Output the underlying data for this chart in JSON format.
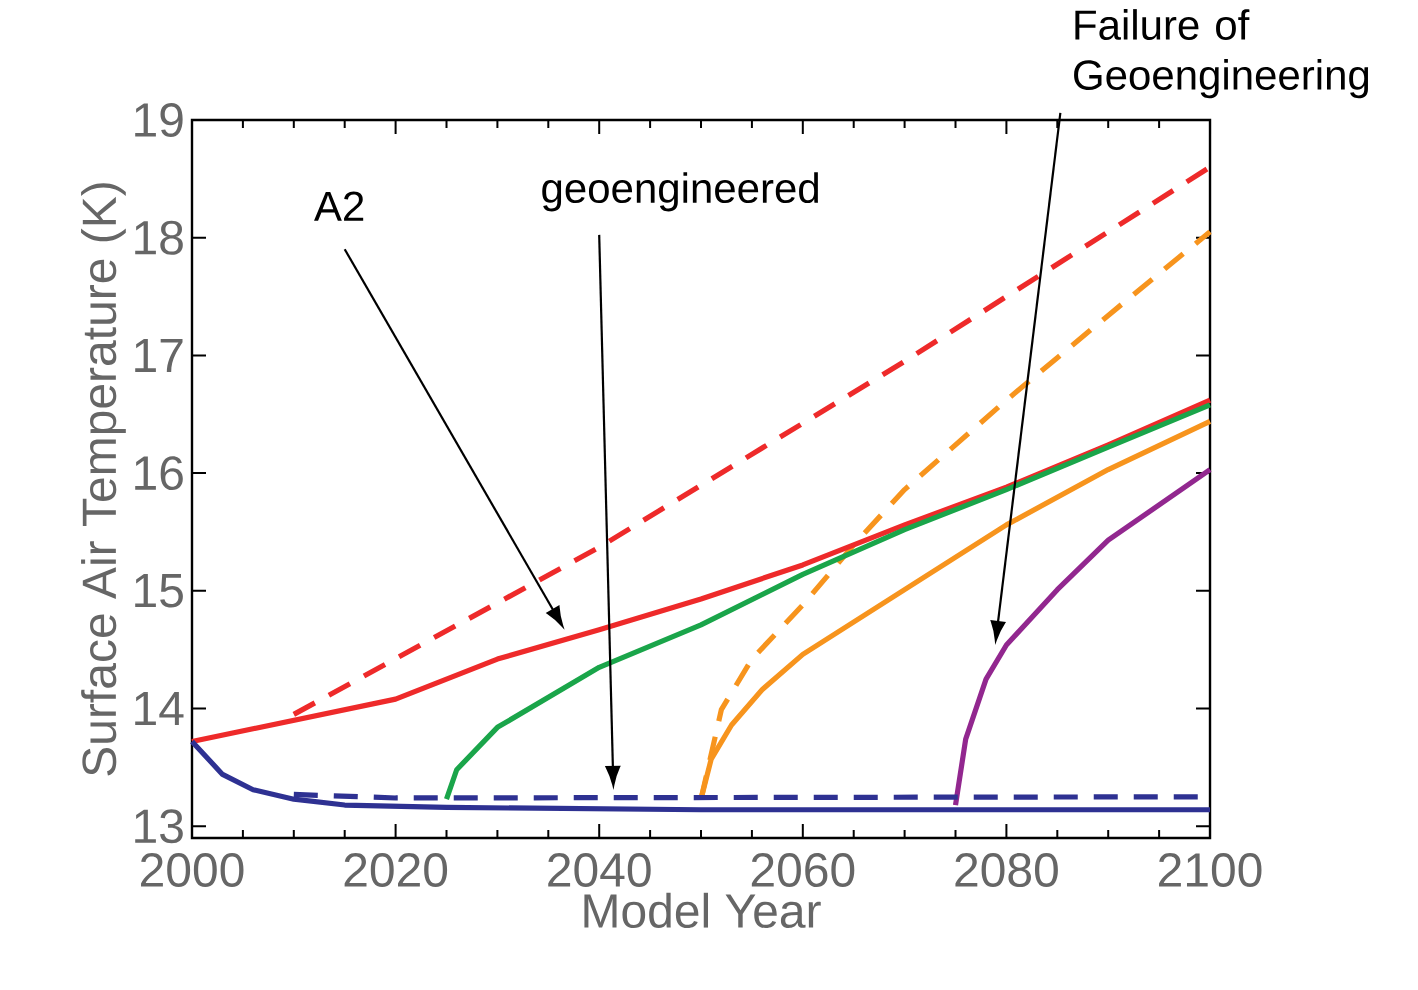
{
  "chart_data": {
    "type": "line",
    "xlabel": "Model Year",
    "ylabel": "Surface Air Temperature (K)",
    "xlim": [
      2000,
      2100
    ],
    "ylim": [
      12.9,
      19
    ],
    "xticks": [
      2000,
      2020,
      2040,
      2060,
      2080,
      2100
    ],
    "yticks": [
      13,
      14,
      15,
      16,
      17,
      18,
      19
    ],
    "series": [
      {
        "color": "#ee2a2a",
        "line_style": "dashed",
        "x": [
          2010,
          2040,
          2070,
          2100
        ],
        "values": [
          13.95,
          15.37,
          16.95,
          18.6
        ]
      },
      {
        "color": "#f7941d",
        "line_style": "dashed",
        "x": [
          2050,
          2052,
          2055,
          2060,
          2065,
          2070,
          2080,
          2090,
          2100
        ],
        "values": [
          13.23,
          13.99,
          14.42,
          14.88,
          15.39,
          15.86,
          16.62,
          17.34,
          18.05
        ]
      },
      {
        "color": "#ee2a2a",
        "line_style": "solid",
        "x": [
          2000,
          2020,
          2030,
          2040,
          2050,
          2060,
          2070,
          2080,
          2090,
          2100
        ],
        "values": [
          13.72,
          14.08,
          14.42,
          14.67,
          14.93,
          15.22,
          15.56,
          15.88,
          16.24,
          16.62
        ]
      },
      {
        "color": "#1aa54a",
        "line_style": "solid",
        "x": [
          2025,
          2026,
          2030,
          2040,
          2050,
          2060,
          2070,
          2080,
          2090,
          2100
        ],
        "values": [
          13.23,
          13.48,
          13.84,
          14.35,
          14.71,
          15.14,
          15.52,
          15.86,
          16.22,
          16.58
        ]
      },
      {
        "color": "#f7941d",
        "line_style": "solid",
        "x": [
          2050,
          2051,
          2053,
          2056,
          2060,
          2070,
          2080,
          2090,
          2100
        ],
        "values": [
          13.23,
          13.57,
          13.86,
          14.16,
          14.46,
          15.01,
          15.56,
          16.03,
          16.44
        ]
      },
      {
        "color": "#92278f",
        "line_style": "solid",
        "x": [
          2075,
          2076,
          2078,
          2080,
          2085,
          2090,
          2095,
          2100
        ],
        "values": [
          13.18,
          13.74,
          14.25,
          14.54,
          15.01,
          15.43,
          15.73,
          16.03
        ]
      },
      {
        "color": "#2e3192",
        "line_style": "dashed",
        "x": [
          2010,
          2020,
          2100
        ],
        "values": [
          13.27,
          13.24,
          13.25
        ]
      },
      {
        "color": "#2e3192",
        "line_style": "solid",
        "x": [
          2000,
          2003,
          2006,
          2010,
          2015,
          2025,
          2050,
          2100
        ],
        "values": [
          13.72,
          13.44,
          13.31,
          13.23,
          13.18,
          13.16,
          13.14,
          13.14
        ]
      }
    ],
    "annotations": [
      "A2",
      "geoengineered",
      "Failure of Geoengineering"
    ]
  }
}
